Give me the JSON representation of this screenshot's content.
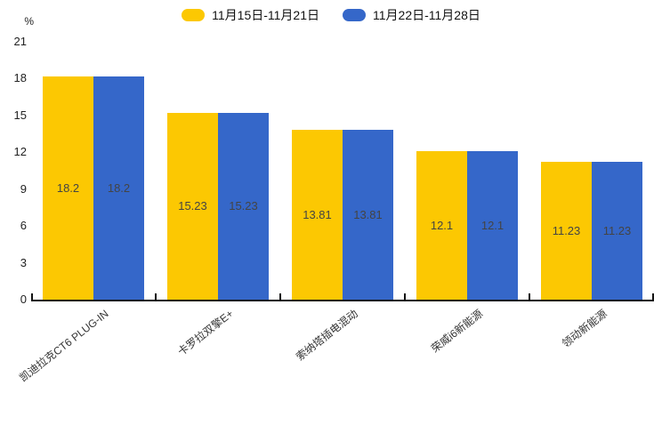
{
  "chart_data": {
    "type": "bar",
    "title": "",
    "ylabel": "%",
    "categories": [
      "凯迪拉克CT6 PLUG-IN",
      "卡罗拉双擎E+",
      "索纳塔插电混动",
      "荣威i6新能源",
      "领动新能源"
    ],
    "series": [
      {
        "name": "11月15日-11月21日",
        "color": "#FCC802",
        "values": [
          18.2,
          15.23,
          13.81,
          12.1,
          11.23
        ]
      },
      {
        "name": "11月22日-11月28日",
        "color": "#3567C9",
        "values": [
          18.2,
          15.23,
          13.81,
          12.1,
          11.23
        ]
      }
    ],
    "yticks": [
      0,
      3,
      6,
      9,
      12,
      15,
      18,
      21
    ],
    "ylim": [
      0,
      21
    ],
    "legend_position": "top",
    "grid": false,
    "value_labels": "inside-center",
    "value_label_color": "#444444",
    "axis_color": "#111111",
    "xtick_rotation_deg": -38
  }
}
